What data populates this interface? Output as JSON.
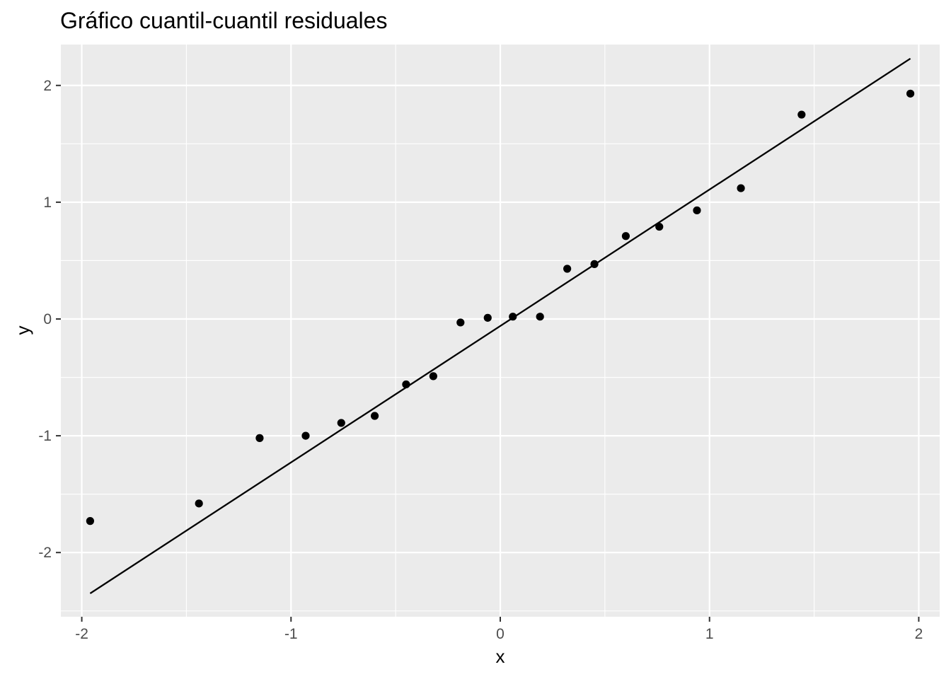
{
  "chart_data": {
    "type": "scatter",
    "title": "Gráfico cuantil-cuantil residuales",
    "xlabel": "x",
    "ylabel": "y",
    "xlim": [
      -2.1,
      2.1
    ],
    "ylim": [
      -2.55,
      2.35
    ],
    "x_ticks": [
      -2,
      -1,
      0,
      1,
      2
    ],
    "x_tick_labels": [
      "-2",
      "-1",
      "0",
      "1",
      "2"
    ],
    "y_ticks": [
      -2,
      -1,
      0,
      1,
      2
    ],
    "y_tick_labels": [
      "-2",
      "-1",
      "0",
      "1",
      "2"
    ],
    "grid": true,
    "legend": "none",
    "colors": {
      "panel": "#ebebeb",
      "grid": "#ffffff",
      "points": "#000000",
      "line": "#000000"
    },
    "points": [
      {
        "x": -1.96,
        "y": -1.73
      },
      {
        "x": -1.44,
        "y": -1.58
      },
      {
        "x": -1.15,
        "y": -1.02
      },
      {
        "x": -0.93,
        "y": -1.0
      },
      {
        "x": -0.76,
        "y": -0.89
      },
      {
        "x": -0.6,
        "y": -0.83
      },
      {
        "x": -0.45,
        "y": -0.56
      },
      {
        "x": -0.32,
        "y": -0.49
      },
      {
        "x": -0.19,
        "y": -0.03
      },
      {
        "x": -0.06,
        "y": 0.01
      },
      {
        "x": 0.06,
        "y": 0.02
      },
      {
        "x": 0.19,
        "y": 0.02
      },
      {
        "x": 0.32,
        "y": 0.43
      },
      {
        "x": 0.45,
        "y": 0.47
      },
      {
        "x": 0.6,
        "y": 0.71
      },
      {
        "x": 0.76,
        "y": 0.79
      },
      {
        "x": 0.94,
        "y": 0.93
      },
      {
        "x": 1.15,
        "y": 1.12
      },
      {
        "x": 1.44,
        "y": 1.75
      },
      {
        "x": 1.96,
        "y": 1.93
      }
    ],
    "reference_line": {
      "x": [
        -1.96,
        1.96
      ],
      "y": [
        -2.35,
        2.23
      ]
    }
  }
}
